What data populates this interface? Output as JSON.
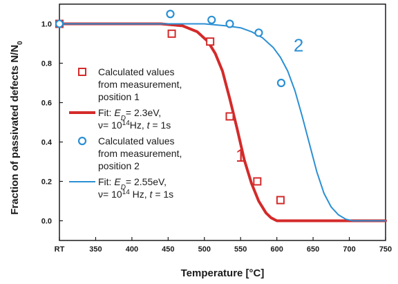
{
  "colors": {
    "series1": "#d42a2a",
    "series2": "#2a8fd4",
    "axis": "#1a1a1a"
  },
  "chart_data": {
    "type": "line",
    "xlabel": "Temperature [°C]",
    "ylabel": "Fraction of passivated defects N/N",
    "ylabel_sub": "0",
    "xlim": [
      300,
      750
    ],
    "ylim": [
      -0.1,
      1.1
    ],
    "x_ticks": [
      {
        "value": 300,
        "label": "RT"
      },
      {
        "value": 350,
        "label": "350"
      },
      {
        "value": 400,
        "label": "400"
      },
      {
        "value": 450,
        "label": "450"
      },
      {
        "value": 500,
        "label": "500"
      },
      {
        "value": 550,
        "label": "550"
      },
      {
        "value": 600,
        "label": "600"
      },
      {
        "value": 650,
        "label": "650"
      },
      {
        "value": 700,
        "label": "700"
      },
      {
        "value": 750,
        "label": "750"
      }
    ],
    "y_ticks": [
      {
        "value": 0.0,
        "label": "0.0"
      },
      {
        "value": 0.2,
        "label": "0.2"
      },
      {
        "value": 0.4,
        "label": "0.4"
      },
      {
        "value": 0.6,
        "label": "0.6"
      },
      {
        "value": 0.8,
        "label": "0.8"
      },
      {
        "value": 1.0,
        "label": "1.0"
      }
    ],
    "series": [
      {
        "name": "Calculated values from measurement, position 1",
        "kind": "scatter",
        "marker": "square",
        "color": "#d42a2a",
        "x": [
          300,
          455,
          508,
          535,
          573,
          605
        ],
        "y": [
          1.0,
          0.95,
          0.91,
          0.53,
          0.2,
          0.105
        ]
      },
      {
        "name": "Fit: ED= 2.3eV, ν= 10^14 Hz, t = 1s",
        "kind": "line",
        "color": "#d42a2a",
        "x": [
          300,
          440,
          470,
          490,
          505,
          515,
          525,
          535,
          545,
          555,
          565,
          575,
          585,
          592,
          600,
          750
        ],
        "y": [
          1.0,
          1.0,
          0.99,
          0.96,
          0.91,
          0.85,
          0.76,
          0.62,
          0.47,
          0.31,
          0.19,
          0.1,
          0.04,
          0.015,
          0.0,
          0.0
        ]
      },
      {
        "name": "Calculated values from measurement, position 2",
        "kind": "scatter",
        "marker": "circle",
        "color": "#2a8fd4",
        "x": [
          300,
          453,
          510,
          535,
          575,
          606
        ],
        "y": [
          1.0,
          1.05,
          1.02,
          1.0,
          0.955,
          0.7
        ]
      },
      {
        "name": "Fit: ED= 2.55eV, ν= 10^14 Hz, t = 1s",
        "kind": "line",
        "color": "#2a8fd4",
        "x": [
          300,
          500,
          530,
          550,
          565,
          580,
          595,
          605,
          615,
          625,
          635,
          645,
          655,
          665,
          675,
          685,
          695,
          705,
          750
        ],
        "y": [
          1.0,
          1.0,
          0.99,
          0.98,
          0.96,
          0.93,
          0.88,
          0.83,
          0.76,
          0.66,
          0.53,
          0.39,
          0.25,
          0.14,
          0.07,
          0.03,
          0.008,
          0.0,
          0.0
        ]
      }
    ],
    "curve_labels": [
      {
        "text": "1",
        "x": 550,
        "y": 0.3,
        "color": "#d42a2a"
      },
      {
        "text": "2",
        "x": 630,
        "y": 0.86,
        "color": "#2a8fd4"
      }
    ],
    "legend": {
      "placement": "left",
      "entries": [
        {
          "marker": "square",
          "color": "#d42a2a",
          "lines": [
            "Calculated values",
            "from measurement,",
            "position 1"
          ]
        },
        {
          "marker": "line",
          "color": "#d42a2a",
          "lines": [
            [
              {
                "t": "Fit:  "
              },
              {
                "t": "E",
                "i": true
              },
              {
                "t": "D",
                "sub": true,
                "i": true
              },
              {
                "t": "= 2.3eV,"
              }
            ],
            [
              {
                "t": "ν= 10"
              },
              {
                "t": "14",
                "sup": true
              },
              {
                "t": "Hz, "
              },
              {
                "t": "t",
                "i": true
              },
              {
                "t": " = 1s"
              }
            ]
          ]
        },
        {
          "marker": "circle",
          "color": "#2a8fd4",
          "lines": [
            "Calculated values",
            "from measurement,",
            "position 2"
          ]
        },
        {
          "marker": "line",
          "color": "#2a8fd4",
          "lines": [
            [
              {
                "t": "Fit:  "
              },
              {
                "t": "E",
                "i": true
              },
              {
                "t": "D",
                "sub": true,
                "i": true
              },
              {
                "t": "= 2.55eV,"
              }
            ],
            [
              {
                "t": "ν= 10"
              },
              {
                "t": "14",
                "sup": true
              },
              {
                "t": " Hz,  "
              },
              {
                "t": "t",
                "i": true
              },
              {
                "t": " = 1s"
              }
            ]
          ]
        }
      ]
    }
  }
}
